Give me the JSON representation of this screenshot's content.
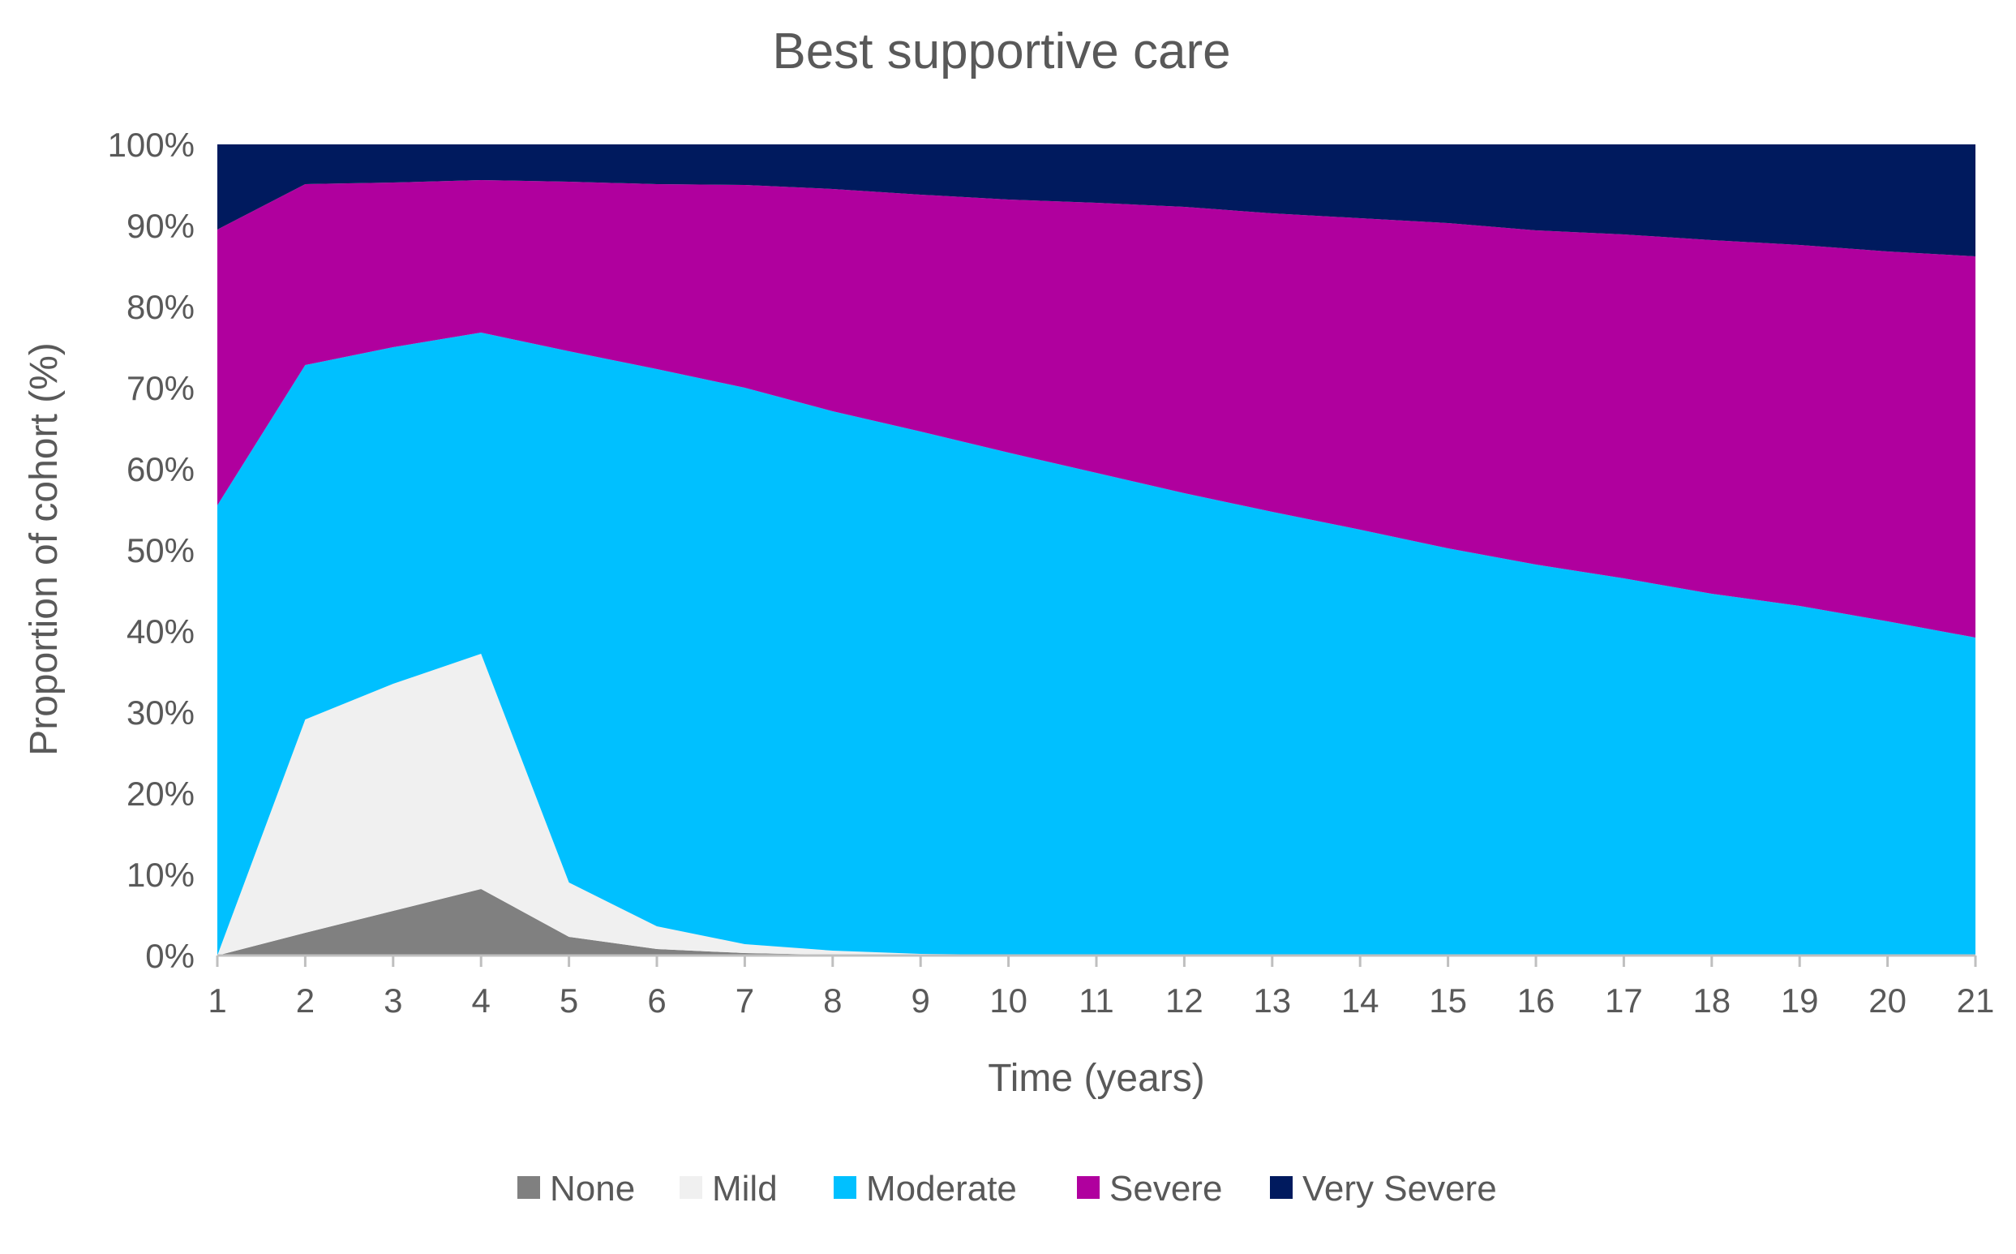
{
  "chart_data": {
    "type": "area",
    "stacked": true,
    "title": "Best supportive care",
    "xlabel": "Time (years)",
    "ylabel": "Proportion of cohort (%)",
    "x": [
      1,
      2,
      3,
      4,
      5,
      6,
      7,
      8,
      9,
      10,
      11,
      12,
      13,
      14,
      15,
      16,
      17,
      18,
      19,
      20,
      21
    ],
    "ylim": [
      0,
      100
    ],
    "yticks": [
      "0%",
      "10%",
      "20%",
      "30%",
      "40%",
      "50%",
      "60%",
      "70%",
      "80%",
      "90%",
      "100%"
    ],
    "ytick_values": [
      0,
      10,
      20,
      30,
      40,
      50,
      60,
      70,
      80,
      90,
      100
    ],
    "grid": false,
    "legend_position": "bottom",
    "series": [
      {
        "name": "None",
        "color": "#808080",
        "values": [
          0,
          2.8,
          5.5,
          8.2,
          2.3,
          0.8,
          0.3,
          0.1,
          0,
          0,
          0,
          0,
          0,
          0,
          0,
          0,
          0,
          0,
          0,
          0,
          0
        ]
      },
      {
        "name": "Mild",
        "color": "#f0f0f0",
        "values": [
          0,
          26.3,
          28,
          29,
          6.7,
          2.8,
          1.1,
          0.5,
          0.2,
          0.1,
          0,
          0,
          0,
          0,
          0,
          0,
          0,
          0,
          0,
          0,
          0
        ]
      },
      {
        "name": "Moderate",
        "color": "#00c0ff",
        "values": [
          55.5,
          43.7,
          41.5,
          39.6,
          65.5,
          68.7,
          68.6,
          66.5,
          64.4,
          61.9,
          59.5,
          57,
          54.7,
          52.5,
          50.2,
          48.2,
          46.5,
          44.6,
          43.1,
          41.2,
          39.2
        ]
      },
      {
        "name": "Severe",
        "color": "#b0009e",
        "values": [
          34,
          22.3,
          20.3,
          18.8,
          20.9,
          22.8,
          25,
          27.4,
          29.2,
          31.2,
          33.3,
          35.3,
          36.8,
          38.4,
          40.1,
          41.2,
          42.4,
          43.6,
          44.5,
          45.6,
          47
        ]
      },
      {
        "name": "Very Severe",
        "color": "#001a5e",
        "values": [
          10.5,
          4.9,
          4.7,
          4.4,
          4.6,
          4.9,
          5,
          5.5,
          6.2,
          6.8,
          7.2,
          7.7,
          8.5,
          9.1,
          9.7,
          10.6,
          11.1,
          11.8,
          12.4,
          13.2,
          13.8
        ]
      }
    ]
  }
}
